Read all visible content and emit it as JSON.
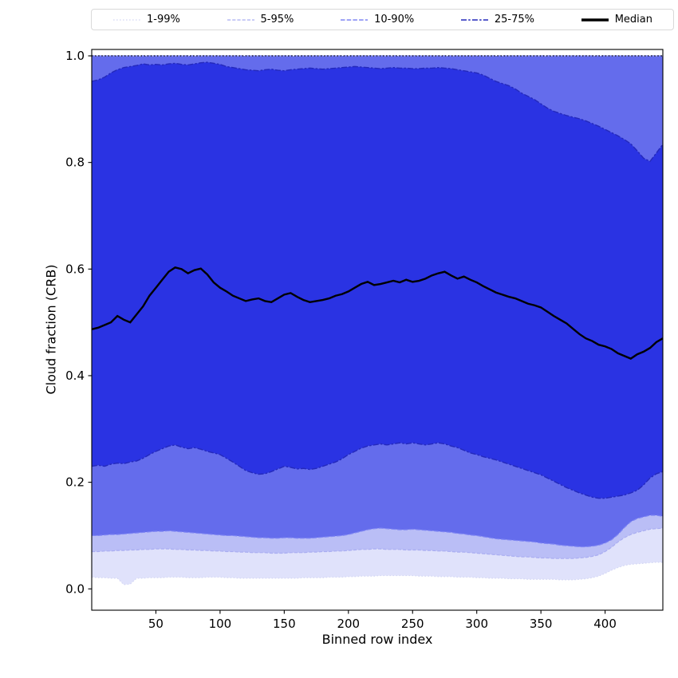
{
  "figure": {
    "background": "#ffffff"
  },
  "chart_data": {
    "type": "area",
    "title": "",
    "xlabel": "Binned row index",
    "ylabel": "Cloud fraction (CRB)",
    "xlim": [
      0,
      445
    ],
    "ylim": [
      -0.04,
      1.012
    ],
    "grid": false,
    "legend_position": "top",
    "xticks": [
      {
        "v": 50,
        "label": "50"
      },
      {
        "v": 100,
        "label": "100"
      },
      {
        "v": 150,
        "label": "150"
      },
      {
        "v": 200,
        "label": "200"
      },
      {
        "v": 250,
        "label": "250"
      },
      {
        "v": 300,
        "label": "300"
      },
      {
        "v": 350,
        "label": "350"
      },
      {
        "v": 400,
        "label": "400"
      }
    ],
    "yticks": [
      {
        "v": 0.0,
        "label": "0.0"
      },
      {
        "v": 0.2,
        "label": "0.2"
      },
      {
        "v": 0.4,
        "label": "0.4"
      },
      {
        "v": 0.6,
        "label": "0.6"
      },
      {
        "v": 0.8,
        "label": "0.8"
      },
      {
        "v": 1.0,
        "label": "1.0"
      }
    ],
    "x": [
      0,
      5,
      10,
      15,
      20,
      25,
      30,
      35,
      40,
      45,
      50,
      55,
      60,
      65,
      70,
      75,
      80,
      85,
      90,
      95,
      100,
      105,
      110,
      115,
      120,
      125,
      130,
      135,
      140,
      145,
      150,
      155,
      160,
      165,
      170,
      175,
      180,
      185,
      190,
      195,
      200,
      205,
      210,
      215,
      220,
      225,
      230,
      235,
      240,
      245,
      250,
      255,
      260,
      265,
      270,
      275,
      280,
      285,
      290,
      295,
      300,
      305,
      310,
      315,
      320,
      325,
      330,
      335,
      340,
      345,
      350,
      355,
      360,
      365,
      370,
      375,
      380,
      385,
      390,
      395,
      400,
      405,
      410,
      415,
      420,
      425,
      430,
      435,
      440,
      445
    ],
    "percentiles": {
      "p1": [
        0.022,
        0.021,
        0.021,
        0.02,
        0.02,
        0.008,
        0.009,
        0.02,
        0.02,
        0.021,
        0.021,
        0.021,
        0.022,
        0.022,
        0.022,
        0.021,
        0.021,
        0.021,
        0.022,
        0.022,
        0.022,
        0.021,
        0.021,
        0.02,
        0.02,
        0.02,
        0.02,
        0.02,
        0.02,
        0.02,
        0.02,
        0.02,
        0.02,
        0.021,
        0.021,
        0.021,
        0.021,
        0.022,
        0.022,
        0.022,
        0.023,
        0.023,
        0.024,
        0.024,
        0.024,
        0.025,
        0.025,
        0.025,
        0.025,
        0.025,
        0.025,
        0.024,
        0.024,
        0.024,
        0.023,
        0.023,
        0.023,
        0.022,
        0.022,
        0.022,
        0.021,
        0.021,
        0.02,
        0.02,
        0.02,
        0.019,
        0.019,
        0.019,
        0.018,
        0.018,
        0.018,
        0.018,
        0.018,
        0.017,
        0.017,
        0.017,
        0.018,
        0.019,
        0.021,
        0.024,
        0.029,
        0.035,
        0.04,
        0.044,
        0.046,
        0.047,
        0.048,
        0.049,
        0.05,
        0.05
      ],
      "p5": [
        0.07,
        0.07,
        0.071,
        0.071,
        0.072,
        0.072,
        0.073,
        0.073,
        0.074,
        0.074,
        0.075,
        0.075,
        0.075,
        0.074,
        0.074,
        0.073,
        0.073,
        0.072,
        0.072,
        0.071,
        0.071,
        0.07,
        0.07,
        0.069,
        0.069,
        0.068,
        0.068,
        0.068,
        0.067,
        0.067,
        0.067,
        0.068,
        0.068,
        0.068,
        0.069,
        0.069,
        0.07,
        0.07,
        0.071,
        0.071,
        0.072,
        0.073,
        0.074,
        0.074,
        0.075,
        0.075,
        0.074,
        0.074,
        0.074,
        0.073,
        0.073,
        0.073,
        0.072,
        0.072,
        0.071,
        0.071,
        0.07,
        0.069,
        0.069,
        0.068,
        0.067,
        0.066,
        0.065,
        0.064,
        0.063,
        0.062,
        0.061,
        0.06,
        0.06,
        0.059,
        0.058,
        0.058,
        0.057,
        0.057,
        0.057,
        0.057,
        0.058,
        0.059,
        0.061,
        0.064,
        0.07,
        0.078,
        0.088,
        0.096,
        0.102,
        0.106,
        0.109,
        0.112,
        0.113,
        0.114
      ],
      "p10": [
        0.1,
        0.1,
        0.101,
        0.102,
        0.102,
        0.103,
        0.104,
        0.105,
        0.106,
        0.107,
        0.108,
        0.108,
        0.109,
        0.108,
        0.107,
        0.106,
        0.105,
        0.104,
        0.103,
        0.102,
        0.101,
        0.1,
        0.1,
        0.099,
        0.098,
        0.097,
        0.096,
        0.096,
        0.095,
        0.095,
        0.096,
        0.096,
        0.095,
        0.095,
        0.095,
        0.096,
        0.097,
        0.098,
        0.099,
        0.1,
        0.102,
        0.105,
        0.108,
        0.111,
        0.113,
        0.114,
        0.113,
        0.112,
        0.111,
        0.111,
        0.112,
        0.111,
        0.11,
        0.109,
        0.108,
        0.107,
        0.106,
        0.104,
        0.103,
        0.101,
        0.1,
        0.098,
        0.096,
        0.094,
        0.093,
        0.092,
        0.091,
        0.09,
        0.089,
        0.088,
        0.086,
        0.085,
        0.084,
        0.082,
        0.081,
        0.08,
        0.079,
        0.079,
        0.08,
        0.082,
        0.086,
        0.092,
        0.102,
        0.115,
        0.126,
        0.132,
        0.135,
        0.138,
        0.138,
        0.136
      ],
      "p25": [
        0.23,
        0.232,
        0.23,
        0.234,
        0.236,
        0.235,
        0.238,
        0.24,
        0.245,
        0.252,
        0.258,
        0.263,
        0.268,
        0.27,
        0.266,
        0.263,
        0.265,
        0.262,
        0.258,
        0.255,
        0.252,
        0.245,
        0.238,
        0.23,
        0.222,
        0.218,
        0.215,
        0.216,
        0.22,
        0.225,
        0.23,
        0.228,
        0.225,
        0.226,
        0.224,
        0.226,
        0.23,
        0.234,
        0.238,
        0.244,
        0.252,
        0.258,
        0.264,
        0.268,
        0.27,
        0.272,
        0.27,
        0.272,
        0.274,
        0.272,
        0.274,
        0.272,
        0.27,
        0.272,
        0.274,
        0.272,
        0.268,
        0.265,
        0.26,
        0.255,
        0.252,
        0.248,
        0.245,
        0.242,
        0.238,
        0.234,
        0.23,
        0.226,
        0.222,
        0.218,
        0.214,
        0.208,
        0.202,
        0.196,
        0.19,
        0.185,
        0.18,
        0.176,
        0.172,
        0.17,
        0.17,
        0.172,
        0.174,
        0.176,
        0.18,
        0.185,
        0.195,
        0.208,
        0.216,
        0.22
      ],
      "median": [
        0.487,
        0.49,
        0.495,
        0.5,
        0.512,
        0.505,
        0.5,
        0.515,
        0.53,
        0.55,
        0.565,
        0.58,
        0.595,
        0.603,
        0.6,
        0.592,
        0.598,
        0.601,
        0.59,
        0.575,
        0.565,
        0.558,
        0.55,
        0.545,
        0.54,
        0.543,
        0.545,
        0.54,
        0.538,
        0.545,
        0.552,
        0.555,
        0.548,
        0.542,
        0.538,
        0.54,
        0.542,
        0.545,
        0.55,
        0.553,
        0.558,
        0.565,
        0.572,
        0.576,
        0.57,
        0.572,
        0.575,
        0.578,
        0.575,
        0.58,
        0.576,
        0.578,
        0.582,
        0.588,
        0.592,
        0.595,
        0.588,
        0.582,
        0.586,
        0.58,
        0.575,
        0.568,
        0.562,
        0.556,
        0.552,
        0.548,
        0.545,
        0.54,
        0.535,
        0.532,
        0.528,
        0.52,
        0.512,
        0.505,
        0.498,
        0.488,
        0.478,
        0.47,
        0.465,
        0.458,
        0.455,
        0.45,
        0.442,
        0.437,
        0.432,
        0.44,
        0.445,
        0.452,
        0.463,
        0.47
      ],
      "p75": [
        0.952,
        0.955,
        0.96,
        0.968,
        0.974,
        0.978,
        0.98,
        0.982,
        0.985,
        0.983,
        0.984,
        0.983,
        0.985,
        0.986,
        0.984,
        0.983,
        0.985,
        0.987,
        0.988,
        0.986,
        0.984,
        0.98,
        0.978,
        0.976,
        0.974,
        0.973,
        0.972,
        0.974,
        0.975,
        0.973,
        0.972,
        0.974,
        0.975,
        0.976,
        0.977,
        0.976,
        0.975,
        0.976,
        0.977,
        0.978,
        0.979,
        0.98,
        0.979,
        0.978,
        0.977,
        0.976,
        0.977,
        0.978,
        0.977,
        0.977,
        0.976,
        0.976,
        0.977,
        0.977,
        0.978,
        0.977,
        0.976,
        0.974,
        0.972,
        0.97,
        0.968,
        0.964,
        0.958,
        0.952,
        0.948,
        0.944,
        0.938,
        0.93,
        0.924,
        0.918,
        0.91,
        0.902,
        0.896,
        0.892,
        0.888,
        0.885,
        0.882,
        0.878,
        0.873,
        0.868,
        0.862,
        0.856,
        0.85,
        0.843,
        0.835,
        0.822,
        0.808,
        0.802,
        0.818,
        0.834
      ],
      "p90": 1.0,
      "p95": 1.0,
      "p99": 1.0
    },
    "bands": [
      {
        "label": "1-99%",
        "lower": "p1",
        "upper": "p99",
        "fill_color": "#e0e2fb",
        "line_color": "#d3d6f4"
      },
      {
        "label": "5-95%",
        "lower": "p5",
        "upper": "p95",
        "fill_color": "#babef6",
        "line_color": "#a9adf1"
      },
      {
        "label": "10-90%",
        "lower": "p10",
        "upper": "p90",
        "fill_color": "#646cec",
        "line_color": "#7e85f3"
      },
      {
        "label": "25-75%",
        "lower": "p25",
        "upper": "p75",
        "fill_color": "#2a33e3",
        "line_color": "#2429bb"
      }
    ],
    "median_label": "Median",
    "median_color": "#000000",
    "reference_line": {
      "y": 1.0,
      "color": "#000000",
      "style": "dotted"
    }
  }
}
